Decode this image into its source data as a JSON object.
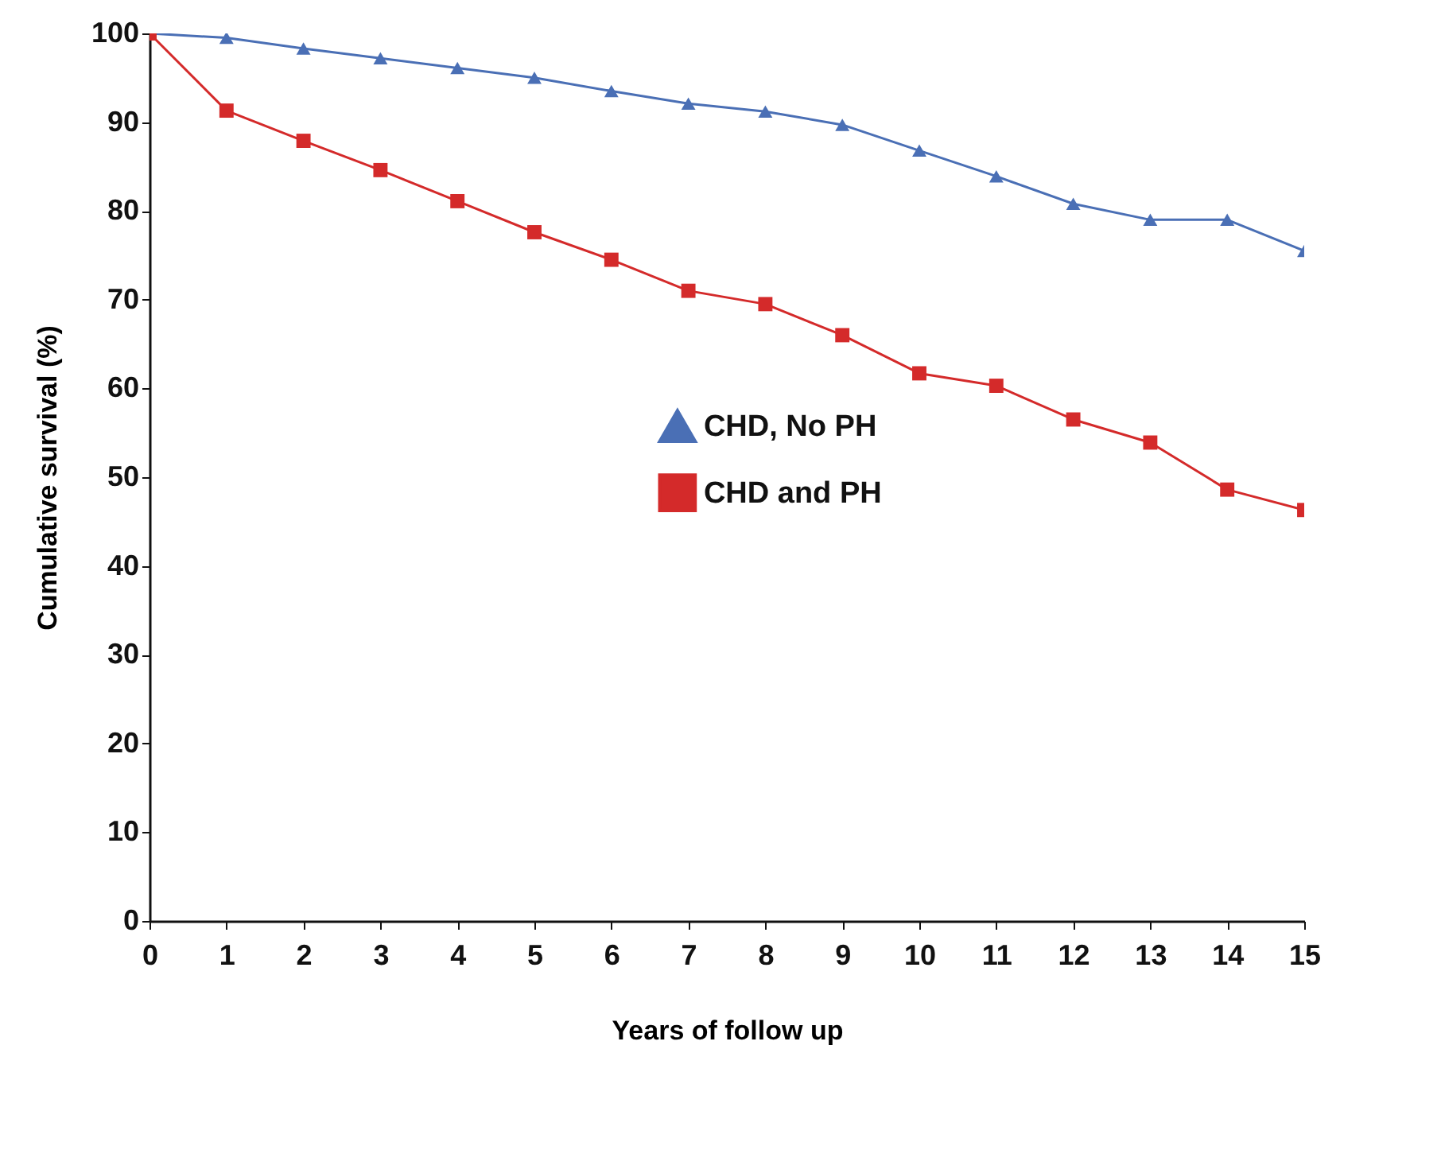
{
  "chart_data": {
    "type": "line",
    "xlabel": "Years of follow up",
    "ylabel": "Cumulative survival (%)",
    "x": [
      0,
      1,
      2,
      3,
      4,
      5,
      6,
      7,
      8,
      9,
      10,
      11,
      12,
      13,
      14,
      15
    ],
    "series": [
      {
        "name": "CHD, No PH",
        "color": "#4a6fb5",
        "marker": "triangle",
        "values": [
          100,
          99.5,
          98.3,
          97.2,
          96.1,
          95,
          93.5,
          92.1,
          91.2,
          89.7,
          86.8,
          83.9,
          80.8,
          79,
          79,
          75.5
        ]
      },
      {
        "name": "CHD and PH",
        "color": "#d42a2a",
        "marker": "square",
        "values": [
          100,
          91.3,
          87.9,
          84.6,
          81.1,
          77.6,
          74.5,
          71,
          69.5,
          66,
          61.7,
          60.3,
          56.5,
          53.9,
          48.6,
          46.3
        ]
      }
    ],
    "xlim": [
      0,
      15
    ],
    "xticks": [
      0,
      1,
      2,
      3,
      4,
      5,
      6,
      7,
      8,
      9,
      10,
      11,
      12,
      13,
      14,
      15
    ],
    "ylim": [
      0,
      100
    ],
    "yticks": [
      0,
      10,
      20,
      30,
      40,
      50,
      60,
      70,
      80,
      90,
      100
    ],
    "grid": false,
    "legend": "right"
  }
}
